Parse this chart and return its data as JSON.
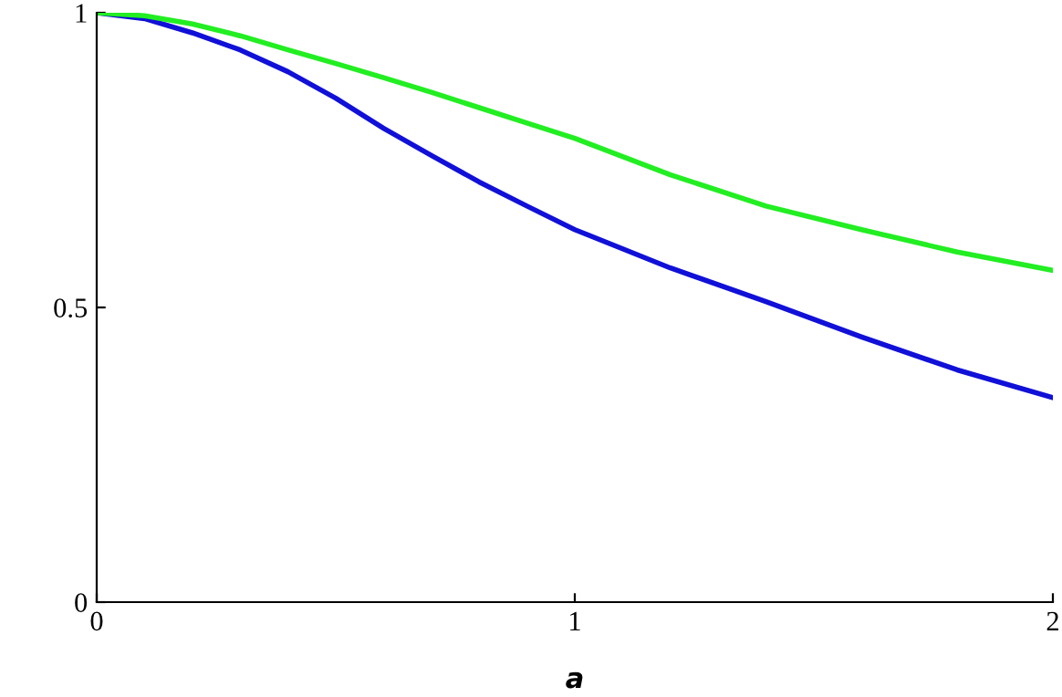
{
  "chart_data": {
    "type": "line",
    "xlabel": "a",
    "xlim": [
      0,
      2
    ],
    "ylim": [
      0,
      1
    ],
    "xticks": [
      0,
      1,
      2
    ],
    "yticks": [
      0,
      0.5,
      1
    ],
    "grid": false,
    "legend": false,
    "marker": "none",
    "line_style": "solid",
    "x": [
      0,
      0.1,
      0.2,
      0.3,
      0.4,
      0.5,
      0.6,
      0.7,
      0.8,
      0.9,
      1.0,
      1.2,
      1.4,
      1.6,
      1.8,
      2.0
    ],
    "series": [
      {
        "color": "#1010d8",
        "values": [
          1.0,
          0.99,
          0.966,
          0.937,
          0.9,
          0.855,
          0.804,
          0.758,
          0.713,
          0.672,
          0.632,
          0.567,
          0.51,
          0.45,
          0.394,
          0.347
        ]
      },
      {
        "color": "#22ee22",
        "values": [
          1.0,
          0.995,
          0.981,
          0.961,
          0.937,
          0.914,
          0.89,
          0.865,
          0.839,
          0.813,
          0.787,
          0.725,
          0.672,
          0.632,
          0.594,
          0.563
        ]
      }
    ]
  }
}
